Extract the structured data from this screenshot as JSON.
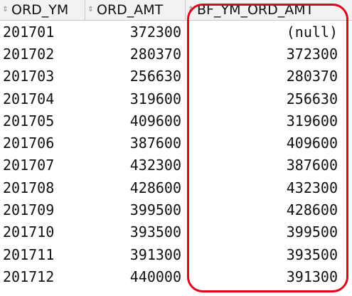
{
  "headers": [
    "ORD_YM",
    "ORD_AMT",
    "BF_YM_ORD_AMT"
  ],
  "rows": [
    [
      "201701",
      "372300",
      "(null)"
    ],
    [
      "201702",
      "280370",
      "372300"
    ],
    [
      "201703",
      "256630",
      "280370"
    ],
    [
      "201704",
      "319600",
      "256630"
    ],
    [
      "201705",
      "409600",
      "319600"
    ],
    [
      "201706",
      "387600",
      "409600"
    ],
    [
      "201707",
      "432300",
      "387600"
    ],
    [
      "201708",
      "428600",
      "432300"
    ],
    [
      "201709",
      "399500",
      "428600"
    ],
    [
      "201710",
      "393500",
      "399500"
    ],
    [
      "201711",
      "391300",
      "393500"
    ],
    [
      "201712",
      "440000",
      "391300"
    ]
  ],
  "colors": {
    "highlight": "#e0001a"
  },
  "icons": {
    "sort": "sort-arrows-icon"
  }
}
